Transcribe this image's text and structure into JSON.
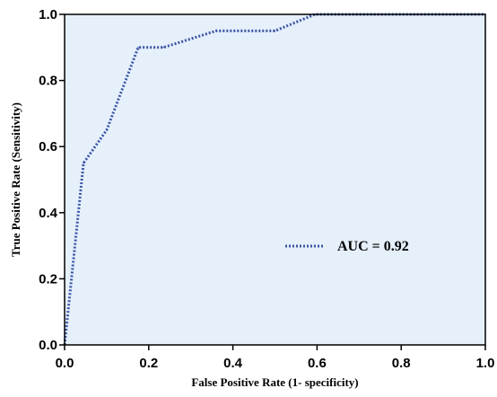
{
  "chart_data": {
    "type": "line",
    "xlabel": "False Positive Rate (1- specificity)",
    "ylabel": "True Positive Rate (Sensitivity)",
    "xlim": [
      0.0,
      1.0
    ],
    "ylim": [
      0.0,
      1.0
    ],
    "x_ticks": [
      "0.0",
      "0.2",
      "0.4",
      "0.6",
      "0.8",
      "1.0"
    ],
    "y_ticks": [
      "0.0",
      "0.2",
      "0.4",
      "0.6",
      "0.8",
      "1.0"
    ],
    "grid": false,
    "series": [
      {
        "name": "AUC = 0.92",
        "line_style": "dotted",
        "color": "#3b55a6",
        "x": [
          0.0,
          0.045,
          0.1,
          0.175,
          0.235,
          0.36,
          0.5,
          0.595,
          1.0
        ],
        "y": [
          0.0,
          0.55,
          0.65,
          0.9,
          0.9,
          0.95,
          0.95,
          1.0,
          1.0
        ]
      }
    ],
    "legend": {
      "placement": "center-right"
    },
    "plot_background": "#e6f0fb",
    "axis_color": "#000000"
  }
}
